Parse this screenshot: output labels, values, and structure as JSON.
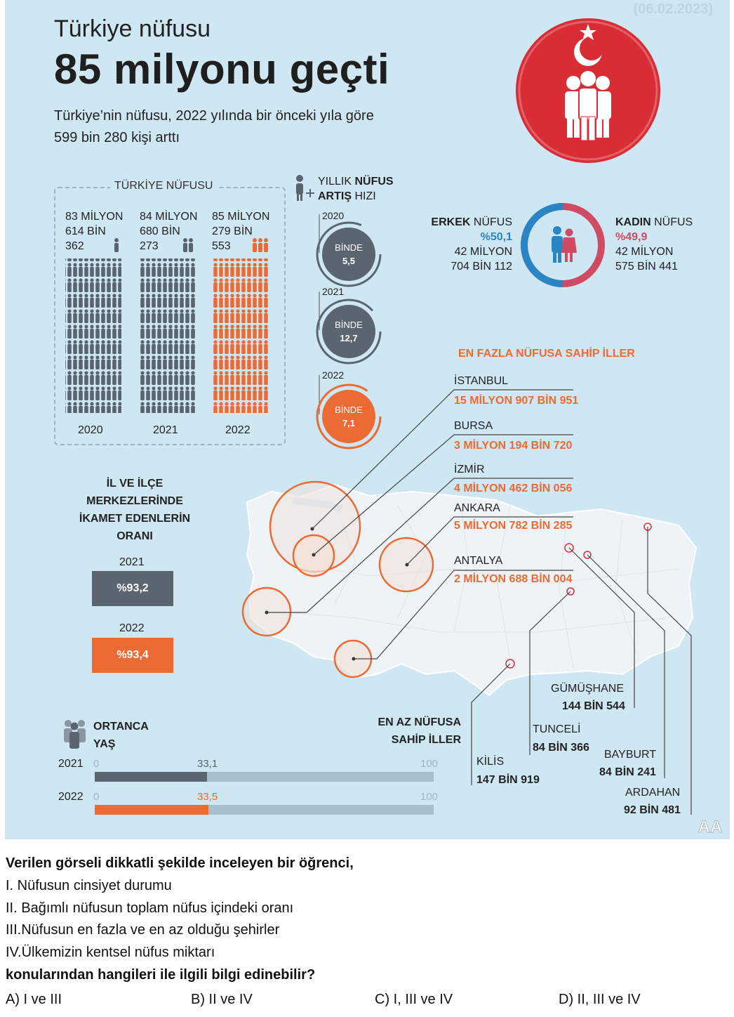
{
  "date": "(06.02.2023)",
  "title_line1": "Türkiye nüfusu",
  "title_line2": "85 milyonu geçti",
  "subtitle_line1": "Türkiye’nin nüfusu, 2022 yılında bir önceki yıla göre",
  "subtitle_line2": "599 bin 280 kişi arttı",
  "population": {
    "section_title": "TÜRKİYE NÜFUSU",
    "columns": [
      {
        "l1": "83 MİLYON",
        "l2": "614 BİN",
        "l3": "362",
        "year": "2020",
        "color": "#596470"
      },
      {
        "l1": "84 MİLYON",
        "l2": "680 BİN",
        "l3": "273",
        "year": "2021",
        "color": "#596470"
      },
      {
        "l1": "85 MİLYON",
        "l2": "279 BİN",
        "l3": "553",
        "year": "2022",
        "color": "#ec6a33"
      }
    ]
  },
  "growth": {
    "title_pre": "YILLIK ",
    "title_bold1": "NÜFUS",
    "title_bold2": "ARTIŞ",
    "title_post": " HIZI",
    "items": [
      {
        "year": "2020",
        "label": "BİNDE",
        "value": "5,5",
        "color": "#5b6570"
      },
      {
        "year": "2021",
        "label": "BİNDE",
        "value": "12,7",
        "color": "#5b6570"
      },
      {
        "year": "2022",
        "label": "BİNDE",
        "value": "7,1",
        "color": "#ec6a33"
      }
    ]
  },
  "gender": {
    "male_bold": "ERKEK",
    "male_word": " NÜFUS",
    "male_pct": "%50,1",
    "male_l1": "42 MİLYON",
    "male_l2": "704 BİN 112",
    "female_bold": "KADIN",
    "female_word": " NÜFUS",
    "female_pct": "%49,9",
    "female_l1": "42 MİLYON",
    "female_l2": "575 BİN 441",
    "male_color": "#2a85c6",
    "female_color": "#cf4b63",
    "male_share": 50.1
  },
  "most_title": "EN FAZLA NÜFUSA SAHİP İLLER",
  "most_cities": [
    {
      "name": "İSTANBUL",
      "value": "15 MİLYON 907 BİN 951"
    },
    {
      "name": "BURSA",
      "value": "3 MİLYON 194 BİN 720"
    },
    {
      "name": "İZMİR",
      "value": "4 MİLYON 462 BİN 056"
    },
    {
      "name": "ANKARA",
      "value": "5 MİLYON 782 BİN 285"
    },
    {
      "name": "ANTALYA",
      "value": "2 MİLYON 688 BİN 004"
    }
  ],
  "residence": {
    "title_l1": "İL VE İLÇE",
    "title_l2": "MERKEZLERİNDE",
    "title_l3": "İKAMET EDENLERİN",
    "title_l4": "ORANI",
    "items": [
      {
        "year": "2021",
        "value": "%93,2",
        "color": "#5b6570"
      },
      {
        "year": "2022",
        "value": "%93,4",
        "color": "#ec6a33"
      }
    ]
  },
  "least_title_l1": "EN AZ NÜFUSA",
  "least_title_l2": "SAHİP İLLER",
  "least_cities": [
    {
      "name": "GÜMÜŞHANE",
      "value": "144 BİN 544"
    },
    {
      "name": "TUNCELİ",
      "value": "84 BİN 366"
    },
    {
      "name": "KİLİS",
      "value": "147 BİN 919"
    },
    {
      "name": "BAYBURT",
      "value": "84 BİN 241"
    },
    {
      "name": "ARDAHAN",
      "value": "92 BİN 481"
    }
  ],
  "median_age": {
    "title_l1": "ORTANCA",
    "title_l2": "YAŞ",
    "axis_min": "0",
    "axis_max": "100",
    "items": [
      {
        "year": "2021",
        "value": "33,1",
        "fraction": 0.331,
        "color": "#5b6570"
      },
      {
        "year": "2022",
        "value": "33,5",
        "fraction": 0.335,
        "color": "#ec6a33"
      }
    ]
  },
  "agency_logo": "AA",
  "question": {
    "stem": "Verilen görseli dikkatli şekilde inceleyen bir öğrenci,",
    "items": [
      "I.  Nüfusun cinsiyet durumu",
      "II. Bağımlı nüfusun toplam nüfus içindeki oranı",
      "III.Nüfusun en fazla ve en az olduğu şehirler",
      "IV.Ülkemizin kentsel nüfus miktarı"
    ],
    "prompt": "konularından hangileri ile ilgili bilgi edinebilir?",
    "choices": [
      "A) I ve III",
      "B) II ve IV",
      "C) I, III ve IV",
      "D) II, III ve IV"
    ]
  }
}
